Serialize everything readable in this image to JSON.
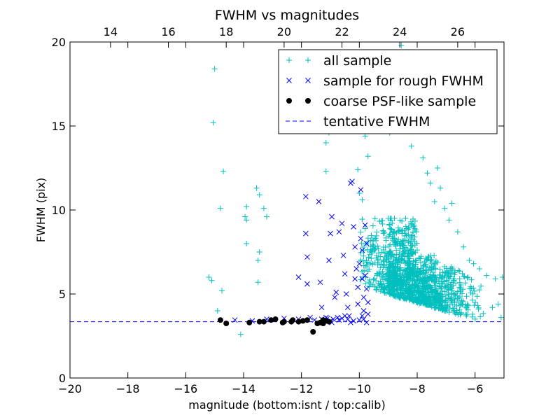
{
  "chart_data": {
    "type": "scatter",
    "title": "FWHM vs magnitudes",
    "xlabel": "magnitude (bottom:isnt / top:calib)",
    "ylabel": "FWHM (pix)",
    "xlim": [
      -20,
      -5
    ],
    "ylim": [
      0,
      20
    ],
    "x_ticks": [
      -20,
      -18,
      -16,
      -14,
      -12,
      -10,
      -8,
      -6
    ],
    "y_ticks": [
      0,
      5,
      10,
      15,
      20
    ],
    "top_axis": {
      "xlim": [
        12.6,
        27.6
      ],
      "ticks": [
        14,
        16,
        18,
        20,
        22,
        24,
        26
      ]
    },
    "grid": false,
    "legend_position": "top-right",
    "series": [
      {
        "name": "all sample",
        "marker": "plus",
        "color": "#00BFBF",
        "cluster": {
          "seed": 7,
          "count": 1300,
          "x_range": [
            -10,
            -5
          ],
          "y_range": [
            2.8,
            9.5
          ],
          "peak_x": -9.0
        },
        "points": [
          [
            -15.2,
            6.0
          ],
          [
            -15.1,
            5.8
          ],
          [
            -15.0,
            18.4
          ],
          [
            -15.05,
            15.2
          ],
          [
            -14.8,
            10.1
          ],
          [
            -14.7,
            12.3
          ],
          [
            -14.9,
            4.0
          ],
          [
            -14.75,
            5.2
          ],
          [
            -14.1,
            2.6
          ],
          [
            -13.9,
            10.2
          ],
          [
            -13.95,
            9.6
          ],
          [
            -13.9,
            9.4
          ],
          [
            -13.9,
            8.0
          ],
          [
            -13.55,
            11.3
          ],
          [
            -13.45,
            10.9
          ],
          [
            -13.45,
            7.5
          ],
          [
            -13.5,
            7.0
          ],
          [
            -13.5,
            5.7
          ],
          [
            -13.3,
            10.1
          ],
          [
            -13.2,
            9.6
          ],
          [
            -12.7,
            14.8
          ],
          [
            -12.4,
            15.6
          ],
          [
            -12.3,
            17.0
          ],
          [
            -12.0,
            15.0
          ],
          [
            -11.75,
            17.3
          ],
          [
            -11.55,
            16.2
          ],
          [
            -11.5,
            15.3
          ],
          [
            -11.35,
            16.0
          ],
          [
            -11.25,
            15.0
          ],
          [
            -11.15,
            12.3
          ],
          [
            -11.15,
            14.0
          ],
          [
            -11.05,
            14.6
          ],
          [
            -10.6,
            17.8
          ],
          [
            -10.45,
            15.4
          ],
          [
            -10.3,
            16.6
          ],
          [
            -10.25,
            19.0
          ],
          [
            -9.8,
            14.4
          ],
          [
            -9.7,
            13.2
          ],
          [
            -9.6,
            15.8
          ],
          [
            -9.45,
            17.1
          ],
          [
            -9.3,
            15.2
          ],
          [
            -9.1,
            17.9
          ],
          [
            -8.95,
            14.6
          ],
          [
            -8.8,
            19.1
          ],
          [
            -8.7,
            15.0
          ],
          [
            -8.5,
            16.2
          ],
          [
            -8.35,
            14.9
          ],
          [
            -8.2,
            13.8
          ],
          [
            -8.1,
            17.6
          ],
          [
            -7.95,
            15.4
          ],
          [
            -7.8,
            13.1
          ],
          [
            -7.65,
            12.2
          ],
          [
            -7.55,
            11.6
          ],
          [
            -7.4,
            10.5
          ],
          [
            -7.3,
            12.5
          ],
          [
            -7.2,
            11.3
          ],
          [
            -7.05,
            10.1
          ],
          [
            -6.9,
            9.4
          ],
          [
            -6.8,
            10.4
          ],
          [
            -6.6,
            8.7
          ],
          [
            -6.4,
            7.8
          ],
          [
            -6.2,
            7.0
          ],
          [
            -6.05,
            6.8
          ],
          [
            -5.85,
            6.5
          ],
          [
            -5.6,
            6.1
          ],
          [
            -5.3,
            5.9
          ],
          [
            -5.05,
            6.0
          ],
          [
            -5.2,
            4.4
          ],
          [
            -5.4,
            4.2
          ],
          [
            -5.1,
            3.6
          ],
          [
            -8.55,
            19.8
          ],
          [
            -10.0,
            11.0
          ],
          [
            -10.05,
            12.4
          ],
          [
            -9.9,
            10.6
          ]
        ]
      },
      {
        "name": "sample for rough FWHM",
        "marker": "x",
        "color": "#0000FF",
        "points": [
          [
            -14.3,
            3.45
          ],
          [
            -13.7,
            3.4
          ],
          [
            -13.2,
            3.5
          ],
          [
            -12.6,
            3.55
          ],
          [
            -12.1,
            3.5
          ],
          [
            -11.55,
            3.45
          ],
          [
            -11.3,
            3.5
          ],
          [
            -11.0,
            3.4
          ],
          [
            -10.7,
            3.45
          ],
          [
            -10.4,
            3.5
          ],
          [
            -10.2,
            3.4
          ],
          [
            -10.0,
            3.45
          ],
          [
            -9.85,
            3.5
          ],
          [
            -10.6,
            3.55
          ],
          [
            -10.9,
            3.5
          ],
          [
            -12.1,
            6.0
          ],
          [
            -11.85,
            10.8
          ],
          [
            -11.85,
            8.6
          ],
          [
            -11.8,
            7.2
          ],
          [
            -11.8,
            5.6
          ],
          [
            -11.7,
            3.6
          ],
          [
            -11.4,
            10.5
          ],
          [
            -11.35,
            5.7
          ],
          [
            -11.3,
            4.2
          ],
          [
            -11.15,
            3.6
          ],
          [
            -11.05,
            7.0
          ],
          [
            -11.0,
            8.6
          ],
          [
            -10.95,
            9.6
          ],
          [
            -10.85,
            4.8
          ],
          [
            -10.8,
            5.1
          ],
          [
            -10.7,
            8.7
          ],
          [
            -10.6,
            9.2
          ],
          [
            -10.55,
            7.3
          ],
          [
            -10.5,
            6.2
          ],
          [
            -10.45,
            5.0
          ],
          [
            -10.4,
            4.2
          ],
          [
            -10.35,
            3.7
          ],
          [
            -10.3,
            11.6
          ],
          [
            -10.25,
            11.7
          ],
          [
            -10.2,
            9.0
          ],
          [
            -10.15,
            7.8
          ],
          [
            -10.1,
            6.5
          ],
          [
            -10.05,
            5.4
          ],
          [
            -10.05,
            4.4
          ],
          [
            -10.0,
            6.8
          ],
          [
            -9.95,
            8.3
          ],
          [
            -9.95,
            11.2
          ],
          [
            -9.9,
            7.6
          ],
          [
            -9.9,
            5.9
          ],
          [
            -9.85,
            4.8
          ],
          [
            -9.85,
            4.0
          ],
          [
            -9.8,
            9.1
          ],
          [
            -9.8,
            6.1
          ],
          [
            -9.75,
            8.0
          ],
          [
            -9.75,
            5.3
          ],
          [
            -9.7,
            3.8
          ],
          [
            -9.7,
            4.5
          ],
          [
            -10.5,
            3.7
          ],
          [
            -10.75,
            3.6
          ],
          [
            -11.1,
            3.55
          ],
          [
            -9.9,
            3.7
          ],
          [
            -9.75,
            3.3
          ],
          [
            -10.3,
            3.3
          ],
          [
            -10.95,
            3.3
          ],
          [
            -10.15,
            5.9
          ]
        ]
      },
      {
        "name": "coarse PSF-like sample",
        "marker": "dot",
        "color": "#000000",
        "points": [
          [
            -14.8,
            3.45
          ],
          [
            -14.6,
            3.25
          ],
          [
            -13.8,
            3.3
          ],
          [
            -13.45,
            3.35
          ],
          [
            -13.3,
            3.35
          ],
          [
            -13.05,
            3.45
          ],
          [
            -12.9,
            3.5
          ],
          [
            -12.65,
            3.3
          ],
          [
            -12.6,
            3.35
          ],
          [
            -12.35,
            3.35
          ],
          [
            -12.3,
            3.45
          ],
          [
            -12.1,
            3.35
          ],
          [
            -11.95,
            3.4
          ],
          [
            -11.8,
            3.45
          ],
          [
            -11.6,
            2.75
          ],
          [
            -11.45,
            3.25
          ],
          [
            -11.35,
            3.3
          ],
          [
            -11.25,
            3.45
          ],
          [
            -11.15,
            3.4
          ],
          [
            -11.05,
            3.35
          ],
          [
            -11.25,
            3.25
          ]
        ]
      }
    ],
    "reference_lines": [
      {
        "name": "tentative FWHM",
        "y": 3.35,
        "style": "dashed",
        "color": "#0000FF"
      }
    ]
  }
}
